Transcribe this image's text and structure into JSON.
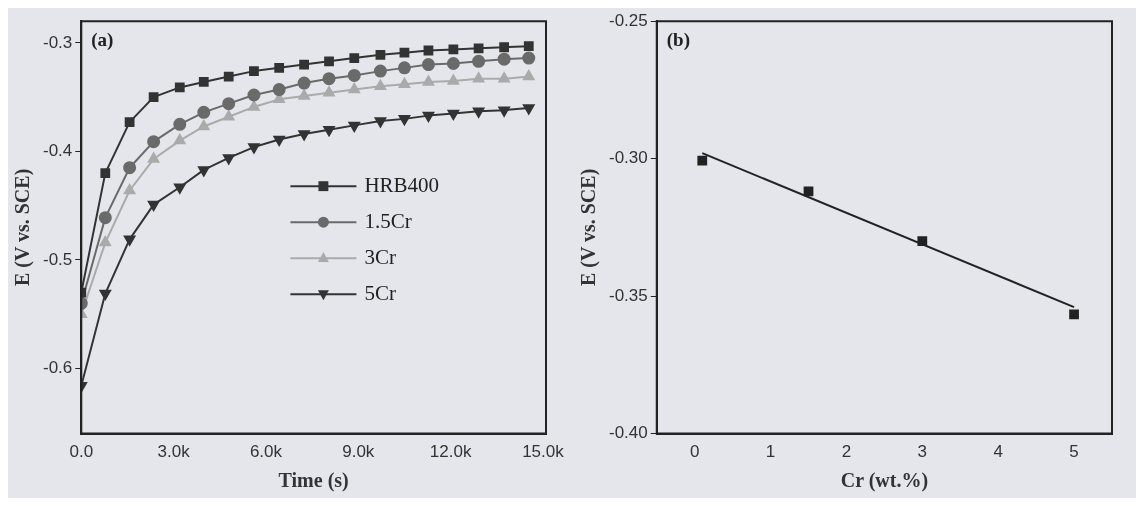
{
  "chart_data": [
    {
      "type": "line",
      "xlabel": "Time (s)",
      "ylabel": "E (V vs. SCE)",
      "annotations": [
        "(a)"
      ],
      "xlim": [
        0,
        15100
      ],
      "ylim": [
        -0.66,
        -0.28
      ],
      "xticks": [
        {
          "value": 0,
          "label": "0.0"
        },
        {
          "value": 3000,
          "label": "3.0k"
        },
        {
          "value": 6000,
          "label": "6.0k"
        },
        {
          "value": 9000,
          "label": "9.0k"
        },
        {
          "value": 12000,
          "label": "12.0k"
        },
        {
          "value": 15000,
          "label": "15.0k"
        }
      ],
      "yticks": [
        -0.6,
        -0.5,
        -0.4,
        -0.3
      ],
      "grid": false,
      "legend": "right",
      "x": [
        0,
        780,
        1570,
        2350,
        3200,
        3980,
        4790,
        5610,
        6430,
        7240,
        8050,
        8870,
        9720,
        10500,
        11280,
        12090,
        12910,
        13740,
        14540
      ],
      "series": [
        {
          "name": "HRB400",
          "color": "#333333",
          "marker": "square",
          "values": [
            -0.53,
            -0.42,
            -0.373,
            -0.35,
            -0.341,
            -0.336,
            -0.331,
            -0.326,
            -0.323,
            -0.32,
            -0.317,
            -0.314,
            -0.311,
            -0.309,
            -0.307,
            -0.306,
            -0.305,
            -0.304,
            -0.303
          ]
        },
        {
          "name": "1.5Cr",
          "color": "#6a6a6a",
          "marker": "circle",
          "values": [
            -0.54,
            -0.461,
            -0.415,
            -0.391,
            -0.375,
            -0.364,
            -0.356,
            -0.348,
            -0.343,
            -0.337,
            -0.333,
            -0.33,
            -0.326,
            -0.323,
            -0.32,
            -0.319,
            -0.317,
            -0.315,
            -0.314
          ]
        },
        {
          "name": "3Cr",
          "color": "#aaaaaa",
          "marker": "triangle",
          "values": [
            -0.55,
            -0.484,
            -0.436,
            -0.407,
            -0.39,
            -0.377,
            -0.368,
            -0.359,
            -0.352,
            -0.349,
            -0.346,
            -0.343,
            -0.34,
            -0.338,
            -0.336,
            -0.335,
            -0.333,
            -0.333,
            -0.331
          ]
        },
        {
          "name": "5Cr",
          "color": "#333333",
          "marker": "triangle-down",
          "values": [
            -0.616,
            -0.531,
            -0.481,
            -0.449,
            -0.433,
            -0.417,
            -0.406,
            -0.396,
            -0.389,
            -0.384,
            -0.38,
            -0.376,
            -0.372,
            -0.37,
            -0.367,
            -0.365,
            -0.363,
            -0.362,
            -0.36
          ]
        }
      ]
    },
    {
      "type": "scatter",
      "xlabel": "Cr (wt.%)",
      "ylabel": "E (V vs. SCE)",
      "annotations": [
        "(b)"
      ],
      "xlim": [
        -0.5,
        5.5
      ],
      "ylim": [
        -0.4,
        -0.25
      ],
      "xticks": [
        0,
        1,
        2,
        3,
        4,
        5
      ],
      "yticks": [
        {
          "value": -0.4,
          "label": "-0.40"
        },
        {
          "value": -0.35,
          "label": "-0.35"
        },
        {
          "value": -0.3,
          "label": "-0.30"
        },
        {
          "value": -0.25,
          "label": "-0.25"
        }
      ],
      "grid": false,
      "series": [
        {
          "color": "#222222",
          "marker": "square",
          "x": [
            0.1,
            1.5,
            3,
            5
          ],
          "values": [
            -0.3007,
            -0.3119,
            -0.33,
            -0.3566
          ]
        },
        {
          "type": "line",
          "color": "#222222",
          "marker": "none",
          "x": [
            0.1,
            5
          ],
          "values": [
            -0.298,
            -0.354
          ]
        }
      ]
    }
  ]
}
